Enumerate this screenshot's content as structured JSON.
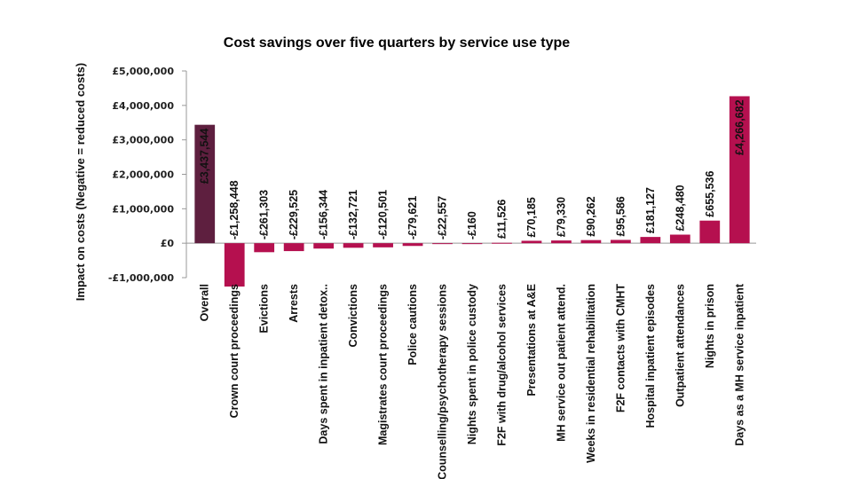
{
  "chart_data": {
    "type": "bar",
    "title": "Cost savings over five quarters by service use type",
    "xlabel": "",
    "ylabel": "Impact on costs (Negative = reduced costs)",
    "ylim": [
      -1000000,
      5000000
    ],
    "y_ticks": [
      -1000000,
      0,
      1000000,
      2000000,
      3000000,
      4000000,
      5000000
    ],
    "y_tick_labels": [
      "-£1,000,000",
      "£0",
      "£1,000,000",
      "£2,000,000",
      "£3,000,000",
      "£4,000,000",
      "£5,000,000"
    ],
    "grid": false,
    "legend": "none",
    "categories": [
      "Overall",
      "Crown court proceedings",
      "Evictions",
      "Arrests",
      "Days spent in inpatient detox..",
      "Convictions",
      "Magistrates court proceedings",
      "Police cautions",
      "Counselling/psychotherapy sessions",
      "Nights spent in police custody",
      "F2F with drug/alcohol services",
      "Presentations at A&E",
      "MH service out patient attend.",
      "Weeks in residential rehabilitation",
      "F2F contacts with CMHT",
      "Hospital inpatient episodes",
      "Outpatient attendances",
      "Nights in prison",
      "Days as a MH service inpatient"
    ],
    "values": [
      3437544,
      -1258448,
      -261303,
      -229525,
      -156344,
      -132721,
      -120501,
      -79621,
      -22557,
      -160,
      11526,
      70185,
      79330,
      90262,
      95586,
      181127,
      248480,
      655536,
      4266682
    ],
    "data_labels": [
      "£3,437,544",
      "-£1,258,448",
      "-£261,303",
      "-£229,525",
      "-£156,344",
      "-£132,721",
      "-£120,501",
      "-£79,621",
      "-£22,557",
      "-£160",
      "£11,526",
      "£70,185",
      "£79,330",
      "£90,262",
      "£95,586",
      "£181,127",
      "£248,480",
      "£655,536",
      "£4,266,682"
    ],
    "colors": {
      "overall": "#5e1f3f",
      "bar": "#b5104f",
      "axis": "#999999"
    }
  }
}
